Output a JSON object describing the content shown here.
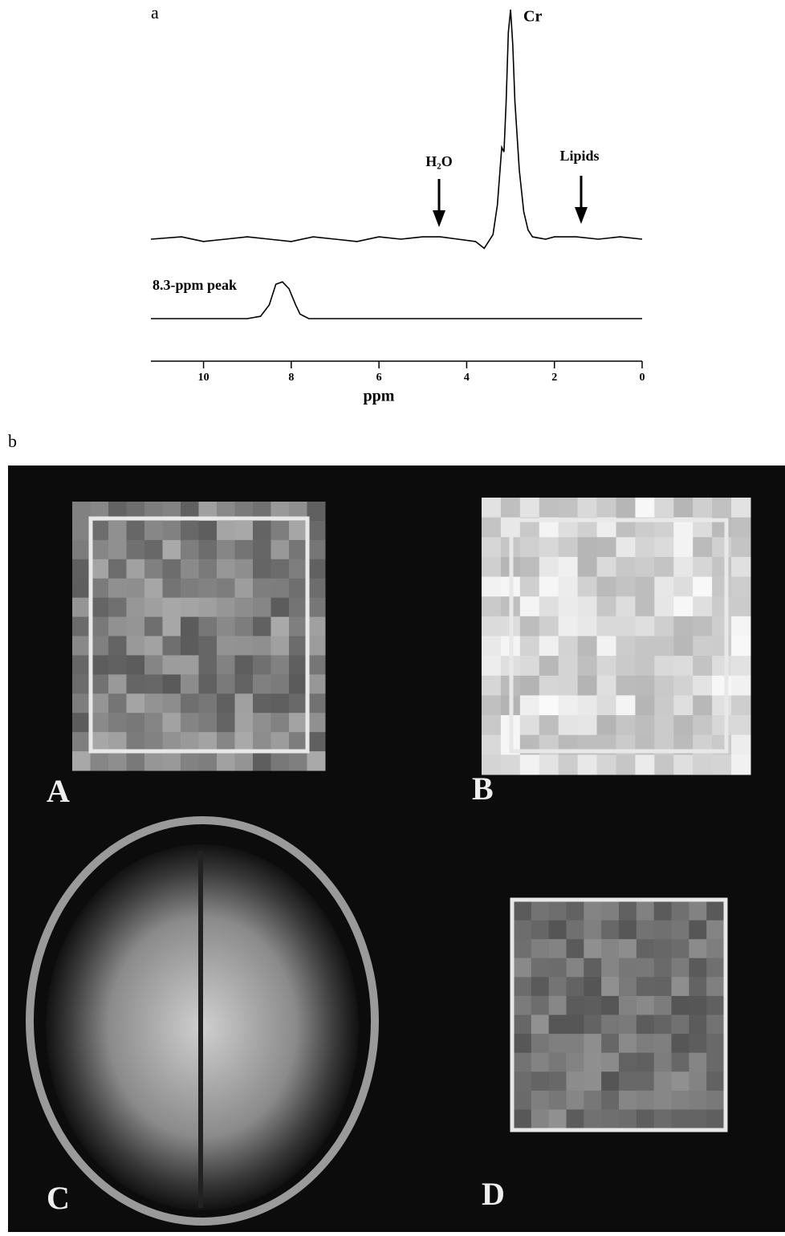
{
  "chart_data": {
    "type": "line",
    "panel_labels": [
      "a",
      "b"
    ],
    "xlabel": "ppm",
    "xlim": [
      11.2,
      0
    ],
    "xticks": [
      10,
      8,
      6,
      4,
      2,
      0
    ],
    "annotations": [
      "Cr",
      "H₂O",
      "Lipids",
      "8.3-ppm peak"
    ],
    "series": [
      {
        "name": "Cr",
        "color": "#000000",
        "x": [
          11.2,
          10.5,
          10,
          9.5,
          9,
          8.5,
          8,
          7.5,
          7,
          6.5,
          6,
          5.5,
          5,
          4.6,
          4.2,
          3.8,
          3.6,
          3.4,
          3.3,
          3.2,
          3.15,
          3.1,
          3.05,
          3.0,
          2.95,
          2.9,
          2.8,
          2.7,
          2.6,
          2.5,
          2.2,
          2,
          1.5,
          1,
          0.5,
          0
        ],
        "values": [
          0,
          1,
          -1,
          0,
          1,
          0,
          -1,
          1,
          0,
          -1,
          1,
          0,
          1,
          1,
          0,
          -1,
          -4,
          2,
          15,
          40,
          38,
          60,
          90,
          100,
          85,
          60,
          30,
          12,
          4,
          1,
          0,
          1,
          1,
          0,
          1,
          0
        ]
      },
      {
        "name": "8.3-ppm peak",
        "color": "#000000",
        "x": [
          11.2,
          10.5,
          10,
          9.5,
          9,
          8.7,
          8.5,
          8.35,
          8.2,
          8.05,
          7.9,
          7.8,
          7.6,
          7,
          6.5,
          6,
          5,
          4,
          3,
          2,
          1,
          0
        ],
        "values": [
          0,
          0,
          0,
          0,
          0,
          1,
          6,
          15,
          16,
          13,
          6,
          2,
          0,
          0,
          0,
          0,
          0,
          0,
          0,
          0,
          0,
          0
        ]
      }
    ]
  },
  "image_panels": {
    "labels": [
      "A",
      "B",
      "C",
      "D"
    ]
  }
}
